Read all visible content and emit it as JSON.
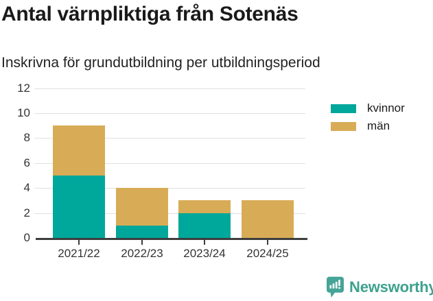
{
  "header": {
    "title": "Antal värnpliktiga från Sotenäs",
    "subtitle": "Inskrivna för grundutbildning per utbildningsperiod"
  },
  "chart_data": {
    "type": "bar",
    "stacked": true,
    "title": "Antal värnpliktiga från Sotenäs",
    "subtitle": "Inskrivna för grundutbildning per utbildningsperiod",
    "categories": [
      "2021/22",
      "2022/23",
      "2023/24",
      "2024/25"
    ],
    "series": [
      {
        "name": "kvinnor",
        "color": "#00a79b",
        "values": [
          5,
          1,
          2,
          0
        ]
      },
      {
        "name": "män",
        "color": "#d8ac56",
        "values": [
          4,
          3,
          1,
          3
        ]
      }
    ],
    "totals": [
      9,
      4,
      3,
      3
    ],
    "xlabel": "",
    "ylabel": "",
    "ylim": [
      0,
      12
    ],
    "yticks": [
      0,
      2,
      4,
      6,
      8,
      10,
      12
    ],
    "grid": "horizontal-light",
    "legend_position": "outside-right-top"
  },
  "legend": {
    "items": [
      {
        "label": "kvinnor",
        "color": "#00a79b"
      },
      {
        "label": "män",
        "color": "#d8ac56"
      }
    ]
  },
  "footer": {
    "brand_name": "Newsworthy",
    "logo_icon": "bar-chart-speech-bubble-icon"
  },
  "colors": {
    "kvinnor": "#00a79b",
    "man": "#d8ac56",
    "gridline": "#e0e0e0",
    "axis": "#3d3d3d",
    "tick_text": "#333333",
    "title_text": "#1a1a1a",
    "brand": "#3da18e"
  }
}
